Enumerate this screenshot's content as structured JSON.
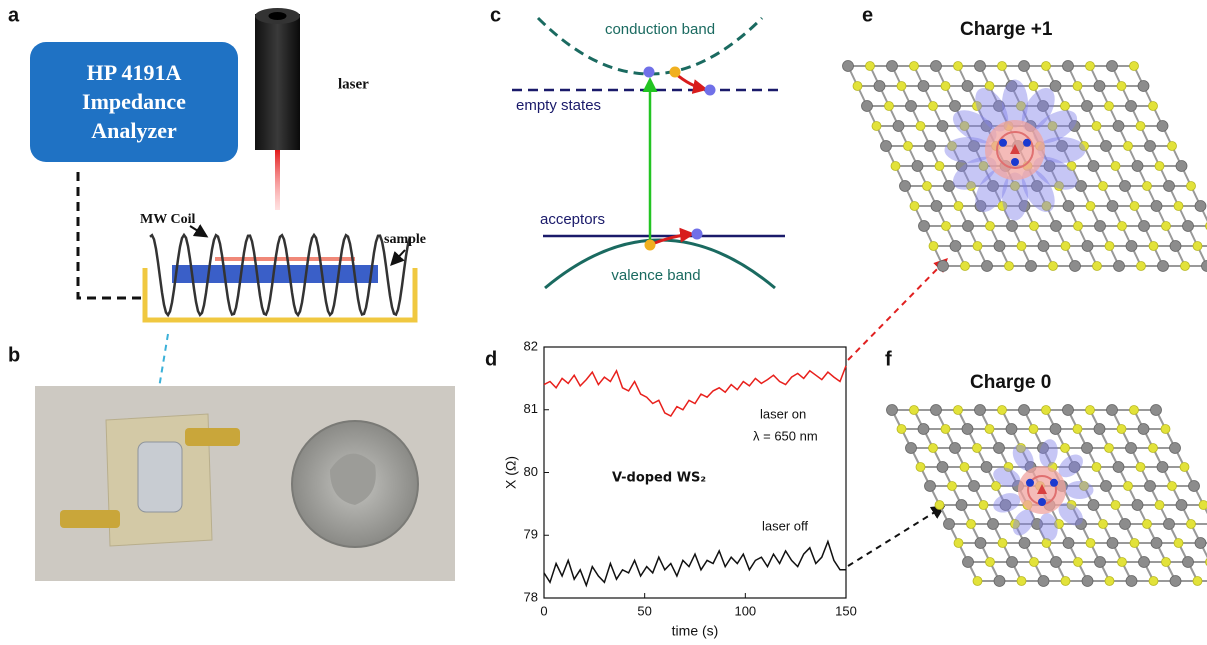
{
  "panels": {
    "a": {
      "label": "a",
      "instrument": [
        "HP 4191A",
        "Impedance",
        "Analyzer"
      ],
      "laser": "laser",
      "coil": "MW Coil",
      "sample": "sample"
    },
    "b": {
      "label": "b"
    },
    "c": {
      "label": "c",
      "conduction_band": "conduction band",
      "empty_states": "empty states",
      "acceptors": "acceptors",
      "valence_band": "valence band"
    },
    "d": {
      "label": "d"
    },
    "e": {
      "label": "e",
      "title": "Charge +1"
    },
    "f": {
      "label": "f",
      "title": "Charge 0"
    }
  },
  "chart_data": {
    "type": "line",
    "xlabel": "time (s)",
    "ylabel": "X (Ω)",
    "annotations": [
      "λ = 650 nm",
      "V-doped WS₂"
    ],
    "x": [
      0,
      3,
      6,
      9,
      12,
      15,
      18,
      21,
      24,
      27,
      30,
      33,
      36,
      39,
      42,
      45,
      48,
      51,
      54,
      57,
      60,
      63,
      66,
      69,
      72,
      75,
      78,
      81,
      84,
      87,
      90,
      93,
      96,
      99,
      102,
      105,
      108,
      111,
      114,
      117,
      120,
      123,
      126,
      129,
      132,
      135,
      138,
      141,
      144,
      147,
      150
    ],
    "series": [
      {
        "name": "laser on",
        "color": "#e8201c",
        "values": [
          81.4,
          81.45,
          81.35,
          81.5,
          81.42,
          81.55,
          81.38,
          81.48,
          81.6,
          81.4,
          81.52,
          81.45,
          81.62,
          81.35,
          81.3,
          81.45,
          81.25,
          81.2,
          81.1,
          81.15,
          80.95,
          80.9,
          81.05,
          81.0,
          81.15,
          81.1,
          81.25,
          81.2,
          81.3,
          81.35,
          81.28,
          81.4,
          81.32,
          81.45,
          81.38,
          81.5,
          81.42,
          81.48,
          81.55,
          81.45,
          81.4,
          81.52,
          81.58,
          81.5,
          81.62,
          81.55,
          81.48,
          81.6,
          81.52,
          81.45,
          81.7
        ]
      },
      {
        "name": "laser off",
        "color": "#111111",
        "values": [
          78.4,
          78.25,
          78.55,
          78.35,
          78.6,
          78.3,
          78.45,
          78.2,
          78.5,
          78.35,
          78.25,
          78.55,
          78.3,
          78.45,
          78.4,
          78.6,
          78.35,
          78.5,
          78.4,
          78.65,
          78.45,
          78.55,
          78.35,
          78.6,
          78.5,
          78.7,
          78.45,
          78.6,
          78.55,
          78.75,
          78.5,
          78.65,
          78.55,
          78.7,
          78.45,
          78.6,
          78.65,
          78.5,
          78.7,
          78.55,
          78.75,
          78.6,
          78.5,
          78.7,
          78.8,
          78.55,
          78.65,
          78.9,
          78.6,
          78.45,
          78.45
        ]
      }
    ],
    "xlim": [
      0,
      150
    ],
    "xticks": [
      0,
      50,
      100,
      150
    ],
    "ylim": [
      78,
      82
    ],
    "yticks": [
      78,
      79,
      80,
      81,
      82
    ]
  }
}
